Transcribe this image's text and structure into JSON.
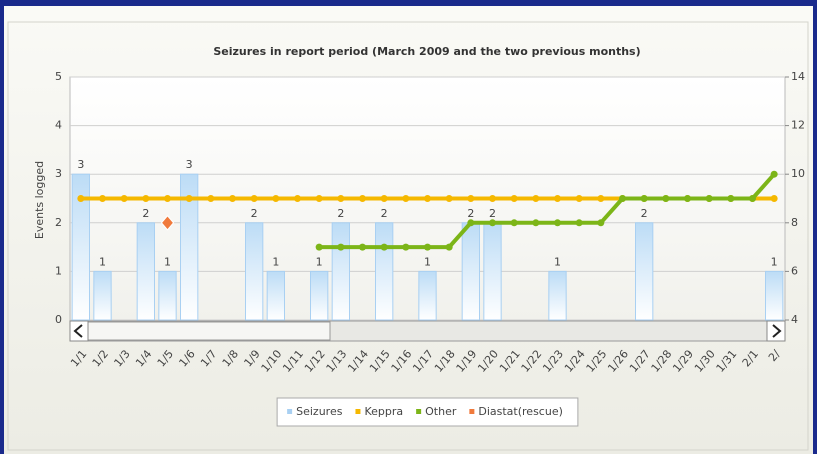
{
  "chart_data": {
    "type": "bar-line",
    "title": "Seizures in report period (March 2009 and the two previous months)",
    "y_label": "Events logged",
    "categories": [
      "1/1",
      "1/2",
      "1/3",
      "1/4",
      "1/5",
      "1/6",
      "1/7",
      "1/8",
      "1/9",
      "1/10",
      "1/11",
      "1/12",
      "1/13",
      "1/14",
      "1/15",
      "1/16",
      "1/17",
      "1/18",
      "1/19",
      "1/20",
      "1/21",
      "1/22",
      "1/23",
      "1/24",
      "1/25",
      "1/26",
      "1/27",
      "1/28",
      "1/29",
      "1/30",
      "1/31",
      "2/1",
      "2/"
    ],
    "ylim": [
      0,
      5
    ],
    "yticks": [
      0,
      1,
      2,
      3,
      4,
      5
    ],
    "y2lim": [
      4,
      14
    ],
    "y2ticks": [
      4,
      6,
      8,
      10,
      12,
      14
    ],
    "grid": true,
    "series": [
      {
        "name": "Seizures",
        "type": "bar",
        "color": "#a9d0f2",
        "values": [
          3,
          1,
          null,
          2,
          1,
          3,
          null,
          null,
          2,
          1,
          null,
          1,
          2,
          null,
          2,
          null,
          1,
          null,
          2,
          2,
          null,
          null,
          1,
          null,
          null,
          null,
          2,
          null,
          null,
          null,
          null,
          null,
          1
        ]
      },
      {
        "name": "Keppra",
        "type": "line",
        "axis": "y2",
        "color": "#f5b800",
        "values": [
          9,
          9,
          9,
          9,
          9,
          9,
          9,
          9,
          9,
          9,
          9,
          9,
          9,
          9,
          9,
          9,
          9,
          9,
          9,
          9,
          9,
          9,
          9,
          9,
          9,
          9,
          9,
          9,
          9,
          9,
          9,
          9,
          9
        ]
      },
      {
        "name": "Other",
        "type": "line",
        "axis": "y2",
        "color": "#7cb518",
        "values": [
          null,
          null,
          null,
          null,
          null,
          null,
          null,
          null,
          null,
          null,
          null,
          7,
          7,
          7,
          7,
          7,
          7,
          7,
          8,
          8,
          8,
          8,
          8,
          8,
          8,
          9,
          9,
          9,
          9,
          9,
          9,
          9,
          10
        ]
      },
      {
        "name": "Diastat(rescue)",
        "type": "scatter",
        "color": "#f07a3c",
        "values": [
          null,
          null,
          null,
          null,
          2,
          null,
          null,
          null,
          null,
          null,
          null,
          null,
          null,
          null,
          null,
          null,
          null,
          null,
          null,
          null,
          null,
          null,
          null,
          null,
          null,
          null,
          null,
          null,
          null,
          null,
          null,
          null,
          null
        ]
      }
    ]
  }
}
